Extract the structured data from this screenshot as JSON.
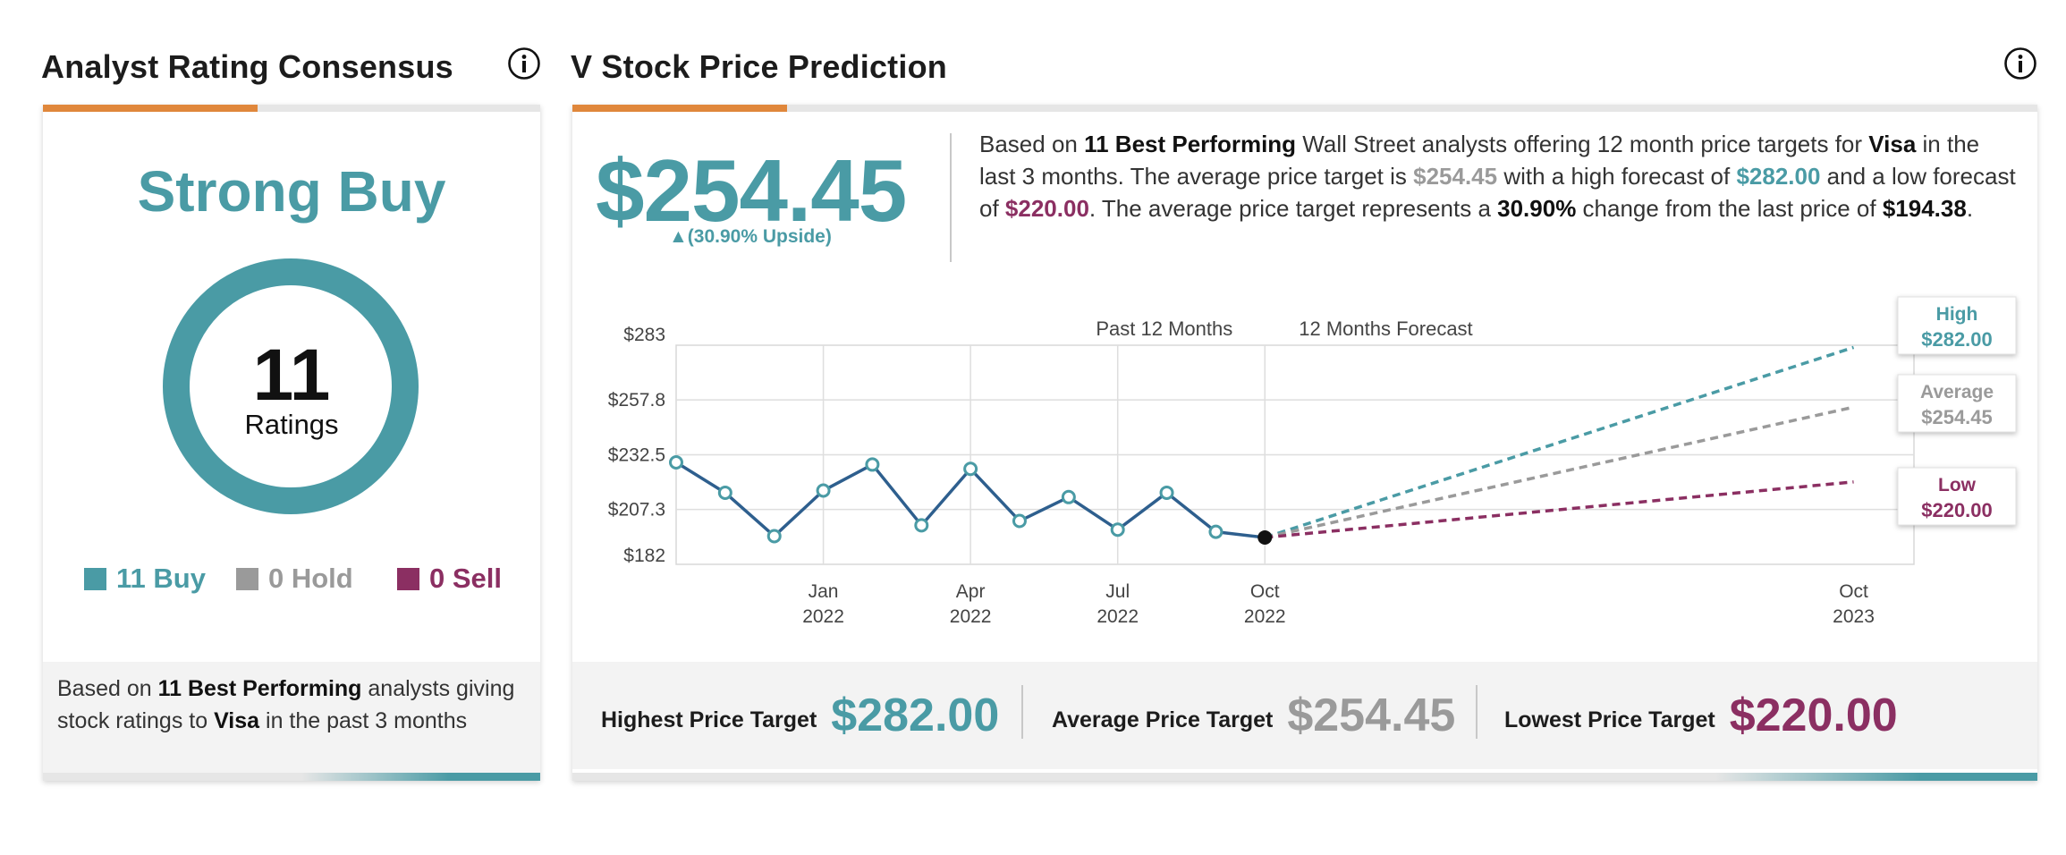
{
  "left_panel": {
    "title": "Analyst Rating Consensus",
    "consensus": "Strong Buy",
    "ratings_count": "11",
    "ratings_label": "Ratings",
    "legend": [
      {
        "label": "11 Buy",
        "color": "#4a9ba5"
      },
      {
        "label": "0 Hold",
        "color": "#9a9a9a"
      },
      {
        "label": "0 Sell",
        "color": "#8b2f62"
      }
    ],
    "footer": {
      "prefix": "Based on ",
      "bold1": "11 Best Performing",
      "mid": " analysts giving stock ratings to ",
      "bold2": "Visa",
      "suffix": "  in the past 3 months"
    }
  },
  "right_panel": {
    "title": "V Stock Price Prediction",
    "average_price": "$254.45",
    "upside": "▲(30.90% Upside)",
    "summary": {
      "p1": "Based on ",
      "b1": "11 Best Performing",
      "p2": " Wall Street analysts offering 12 month price targets for ",
      "b2": "Visa",
      "p3": " in the last 3 months. The average price target is ",
      "avg": "$254.45",
      "p4": " with a high forecast of ",
      "high": "$282.00",
      "p5": " and a low forecast of ",
      "low": "$220.00",
      "p6": ". The average price target represents a ",
      "change": "30.90%",
      "p7": " change from the last price of ",
      "last": "$194.38",
      "p8": "."
    },
    "targets": [
      {
        "label": "Highest Price Target",
        "value": "$282.00",
        "color": "#4a9ba5"
      },
      {
        "label": "Average Price Target",
        "value": "$254.45",
        "color": "#9a9a9a"
      },
      {
        "label": "Lowest Price Target",
        "value": "$220.00",
        "color": "#8b2f62"
      }
    ]
  },
  "colors": {
    "teal": "#4a9ba5",
    "gray": "#9a9a9a",
    "purple": "#8b2f62",
    "orange_accent": "#e0873b",
    "line_blue": "#2e5f8e"
  },
  "chart_data": {
    "type": "line",
    "section_labels": [
      "Past 12 Months",
      "12 Months Forecast"
    ],
    "y_ticks": [
      "$283",
      "$257.8",
      "$232.5",
      "$207.3",
      "$182"
    ],
    "y_tick_values": [
      283,
      257.8,
      232.5,
      207.3,
      182
    ],
    "ylim": [
      182,
      283
    ],
    "x_ticks": [
      {
        "month": "Jan",
        "year": "2022",
        "x": 2022.0
      },
      {
        "month": "Apr",
        "year": "2022",
        "x": 2022.25
      },
      {
        "month": "Jul",
        "year": "2022",
        "x": 2022.5
      },
      {
        "month": "Oct",
        "year": "2022",
        "x": 2022.75
      },
      {
        "month": "Oct",
        "year": "2023",
        "x": 2023.75
      }
    ],
    "history": {
      "x": [
        2021.75,
        2021.8333,
        2021.9167,
        2022.0,
        2022.0833,
        2022.1667,
        2022.25,
        2022.3333,
        2022.4167,
        2022.5,
        2022.5833,
        2022.6667,
        2022.75
      ],
      "y": [
        229,
        215,
        195,
        216,
        228,
        200,
        226,
        202,
        213,
        198,
        215,
        197,
        194.38
      ]
    },
    "forecasts": [
      {
        "name": "High",
        "value": "$282.00",
        "y": 282.0,
        "color": "#4a9ba5"
      },
      {
        "name": "Average",
        "value": "$254.45",
        "y": 254.45,
        "color": "#9a9a9a"
      },
      {
        "name": "Low",
        "value": "$220.00",
        "y": 220.0,
        "color": "#8b2f62"
      }
    ],
    "forecast_start": {
      "x": 2022.75,
      "y": 194.38
    },
    "forecast_end_x": 2023.75
  }
}
